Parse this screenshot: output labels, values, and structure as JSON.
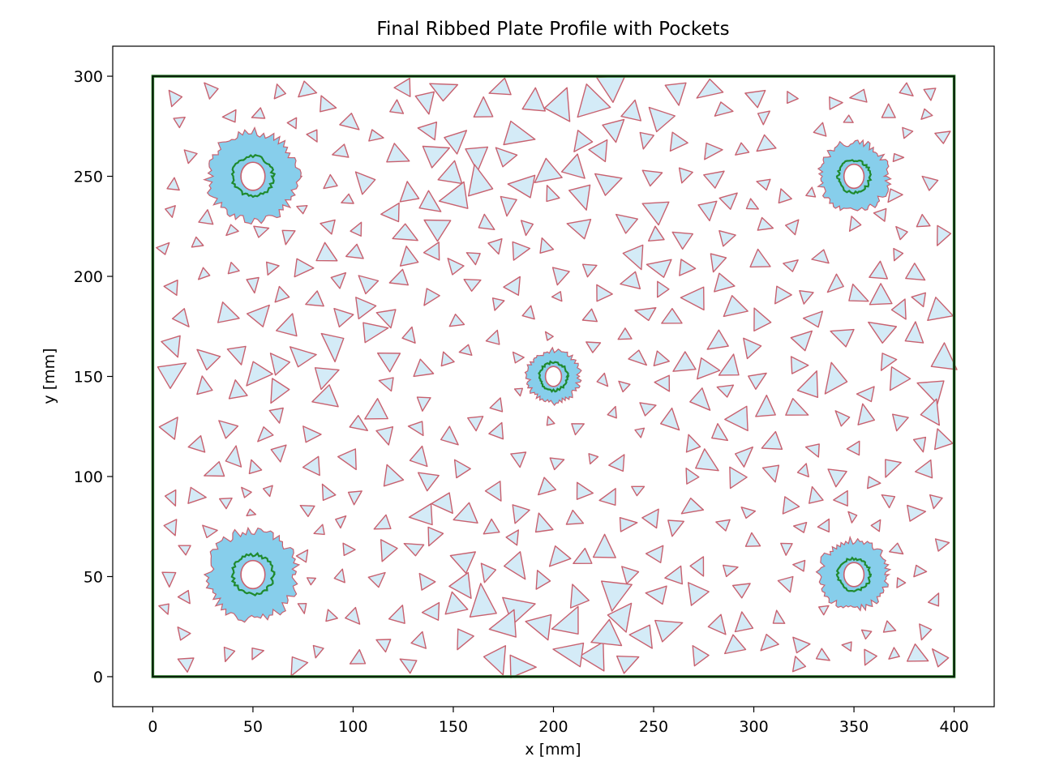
{
  "chart_data": {
    "type": "scatter",
    "title": "Final Ribbed Plate Profile with Pockets",
    "xlabel": "x [mm]",
    "ylabel": "y [mm]",
    "xlim": [
      -20,
      420
    ],
    "ylim": [
      -15,
      315
    ],
    "xticks": [
      0,
      50,
      100,
      150,
      200,
      250,
      300,
      350,
      400
    ],
    "yticks": [
      0,
      50,
      100,
      150,
      200,
      250,
      300
    ],
    "grid": false,
    "legend": "none",
    "plate": {
      "x0": 0,
      "y0": 0,
      "x1": 400,
      "y1": 300
    },
    "bosses": [
      {
        "cx": 50,
        "cy": 250,
        "r_outer": 22,
        "r_ring": 10,
        "hole_rx": 6,
        "hole_ry": 7
      },
      {
        "cx": 350,
        "cy": 250,
        "r_outer": 17,
        "r_ring": 8,
        "hole_rx": 5,
        "hole_ry": 6
      },
      {
        "cx": 200,
        "cy": 150,
        "r_outer": 13,
        "r_ring": 7,
        "hole_rx": 4,
        "hole_ry": 5
      },
      {
        "cx": 50,
        "cy": 51,
        "r_outer": 22,
        "r_ring": 10,
        "hole_rx": 6,
        "hole_ry": 7
      },
      {
        "cx": 350,
        "cy": 51,
        "r_outer": 17,
        "r_ring": 8,
        "hole_rx": 5,
        "hole_ry": 6
      }
    ],
    "pocket_field": {
      "x_range": [
        5,
        395
      ],
      "y_range": [
        5,
        295
      ],
      "pocket_size_mm": [
        6,
        24
      ],
      "count_approx": 420
    },
    "colors": {
      "pocket_fill": "#d4ebf7",
      "pocket_edge": "#c8616f",
      "boss_fill": "#87ceeb",
      "boss_ring": "#1f8a2e",
      "hole_edge": "#c8616f",
      "outline": "#000000",
      "outline_green": "#2a7a2a"
    }
  }
}
